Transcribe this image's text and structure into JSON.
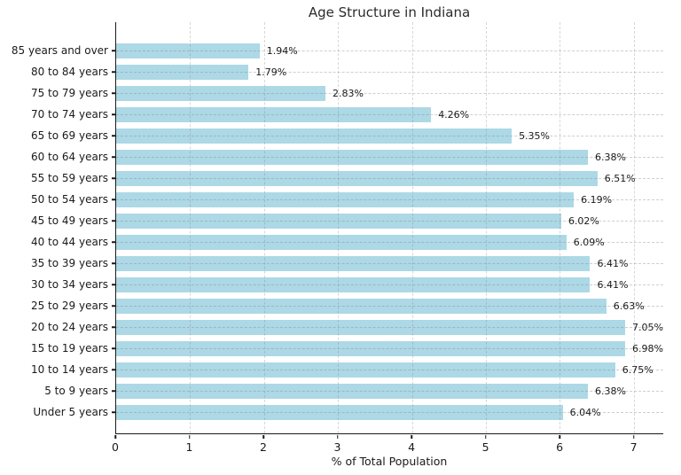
{
  "chart_data": {
    "type": "bar",
    "orientation": "horizontal",
    "title": "Age Structure in Indiana",
    "xlabel": "% of Total Population",
    "ylabel": "",
    "categories": [
      "85 years and over",
      "80 to 84 years",
      "75 to 79 years",
      "70 to 74 years",
      "65 to 69 years",
      "60 to 64 years",
      "55 to 59 years",
      "50 to 54 years",
      "45 to 49 years",
      "40 to 44 years",
      "35 to 39 years",
      "30 to 34 years",
      "25 to 29 years",
      "20 to 24 years",
      "15 to 19 years",
      "10 to 14 years",
      "5 to 9 years",
      "Under 5 years"
    ],
    "values": [
      1.94,
      1.79,
      2.83,
      4.26,
      5.35,
      6.38,
      6.51,
      6.19,
      6.02,
      6.09,
      6.41,
      6.41,
      6.63,
      7.05,
      6.98,
      6.75,
      6.38,
      6.04
    ],
    "value_labels": [
      "1.94%",
      "1.79%",
      "2.83%",
      "4.26%",
      "5.35%",
      "6.38%",
      "6.51%",
      "6.19%",
      "6.02%",
      "6.09%",
      "6.41%",
      "6.41%",
      "6.63%",
      "7.05%",
      "6.98%",
      "6.75%",
      "6.38%",
      "6.04%"
    ],
    "x_ticks": [
      0,
      1,
      2,
      3,
      4,
      5,
      6,
      7
    ],
    "xlim": [
      0,
      7.4
    ],
    "grid": true,
    "grid_style": "dashed",
    "legend_position": "none",
    "bar_color": "#ADD8E6",
    "spine_color": "#1a1a1a"
  }
}
